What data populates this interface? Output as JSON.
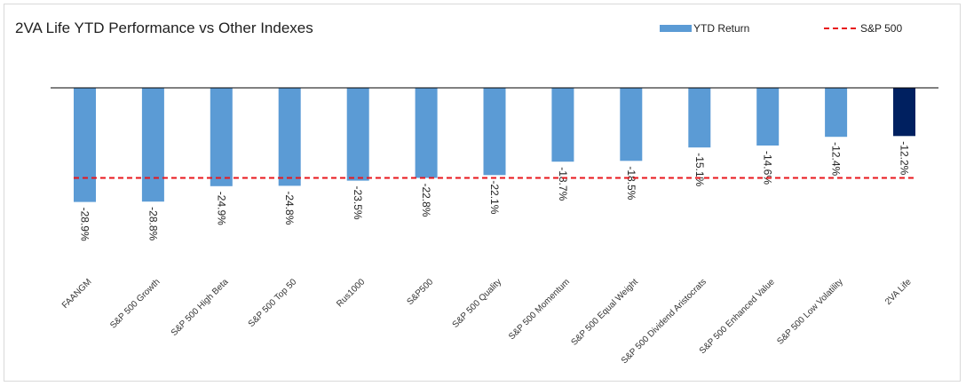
{
  "chart_data": {
    "type": "bar",
    "title": "2VA Life YTD Performance vs Other Indexes",
    "categories": [
      "FAANGM",
      "S&P 500 Growth",
      "S&P 500 High Beta",
      "S&P 500 Top 50",
      "Rus1000",
      "S&P500",
      "S&P 500 Quality",
      "S&P 500 Momentum",
      "S&P 500 Equal Weight",
      "S&P 500 Dividend Aristocrats",
      "S&P 500 Enhanced Value",
      "S&P 500 Low Volatility",
      "2VA Life"
    ],
    "series": [
      {
        "name": "YTD Return",
        "values": [
          -28.9,
          -28.8,
          -24.9,
          -24.8,
          -23.5,
          -22.8,
          -22.1,
          -18.7,
          -18.5,
          -15.1,
          -14.6,
          -12.4,
          -12.2
        ]
      }
    ],
    "data_labels": [
      "-28.9%",
      "-28.8%",
      "-24.9%",
      "-24.8%",
      "-23.5%",
      "-22.8%",
      "-22.1%",
      "-18.7%",
      "-18.5%",
      "-15.1%",
      "-14.6%",
      "-12.4%",
      "-12.2%"
    ],
    "reference_line": {
      "name": "S&P 500",
      "value": -22.8,
      "color": "#e8161b"
    },
    "highlight_index": 12,
    "colors": {
      "bar": "#5b9bd5",
      "highlight": "#002060",
      "axis": "#000000"
    },
    "ylim": [
      -35,
      0
    ],
    "legend": {
      "position": "top-right",
      "entries": [
        "YTD Return",
        "S&P 500"
      ]
    },
    "grid": false,
    "xlabel": "",
    "ylabel": ""
  }
}
